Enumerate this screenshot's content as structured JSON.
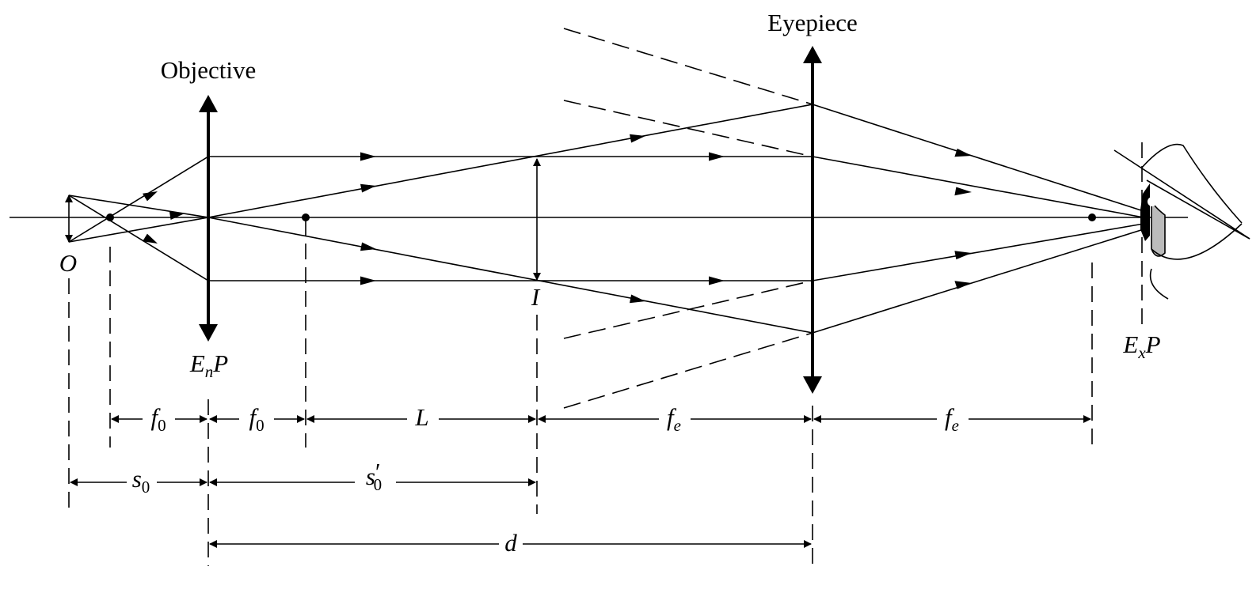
{
  "labels": {
    "objective": "Objective",
    "eyepiece": "Eyepiece",
    "object": "O",
    "image": "I",
    "entrance_pupil": {
      "main": "E",
      "sub": "n",
      "tail": "P"
    },
    "exit_pupil": {
      "main": "E",
      "sub": "x",
      "tail": "P"
    }
  },
  "dimensions": {
    "f0_left": {
      "main": "f",
      "sub": "0"
    },
    "f0_right": {
      "main": "f",
      "sub": "0"
    },
    "L": {
      "main": "L"
    },
    "fe_left": {
      "main": "f",
      "sub": "e"
    },
    "fe_right": {
      "main": "f",
      "sub": "e"
    },
    "s0": {
      "main": "s",
      "sub": "0"
    },
    "s0_prime": {
      "main": "s",
      "prime": "′",
      "sub": "0"
    },
    "d": {
      "main": "d"
    }
  },
  "colors": {
    "ink": "#000000",
    "pupil_fill": "#bbbbbb",
    "background": "#ffffff"
  }
}
